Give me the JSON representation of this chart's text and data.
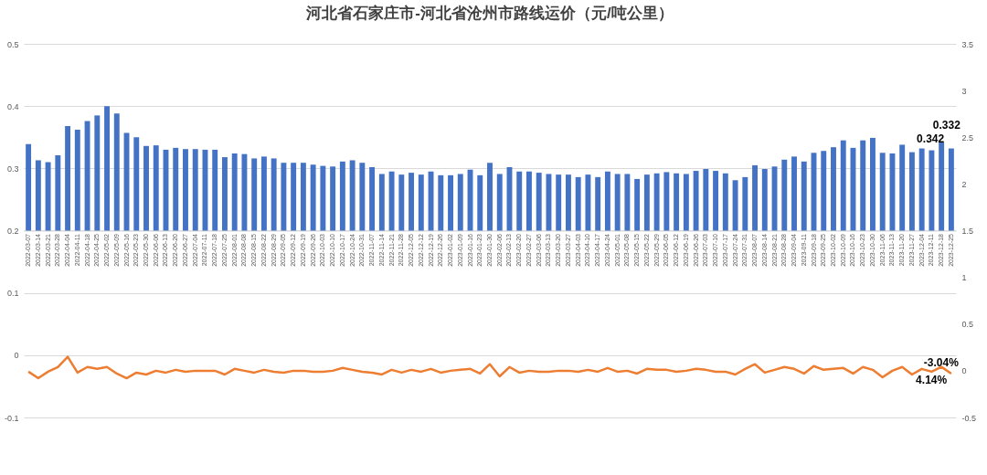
{
  "chart_data": {
    "type": "bar",
    "title": "河北省石家庄市-河北省沧州市路线运价（元/吨公里）",
    "categories": [
      "2022-03-07",
      "2022-03-14",
      "2022-03-21",
      "2022-03-28",
      "2022-04-04",
      "2022-04-11",
      "2022-04-18",
      "2022-04-25",
      "2022-05-02",
      "2022-05-09",
      "2022-05-16",
      "2022-05-23",
      "2022-05-30",
      "2022-06-06",
      "2022-06-13",
      "2022-06-20",
      "2022-06-27",
      "2022-07-04",
      "2022-07-11",
      "2022-07-18",
      "2022-07-25",
      "2022-08-01",
      "2022-08-08",
      "2022-08-15",
      "2022-08-22",
      "2022-08-29",
      "2022-09-05",
      "2022-09-12",
      "2022-09-19",
      "2022-09-26",
      "2022-10-03",
      "2022-10-10",
      "2022-10-17",
      "2022-10-24",
      "2022-10-31",
      "2022-11-07",
      "2022-11-14",
      "2022-11-21",
      "2022-11-28",
      "2022-12-05",
      "2022-12-12",
      "2022-12-19",
      "2022-12-26",
      "2023-01-02",
      "2023-01-09",
      "2023-01-16",
      "2023-01-23",
      "2023-01-30",
      "2023-02-06",
      "2023-02-13",
      "2023-02-20",
      "2023-02-27",
      "2023-03-06",
      "2023-03-13",
      "2023-03-20",
      "2023-03-27",
      "2023-04-03",
      "2023-04-10",
      "2023-04-17",
      "2023-04-24",
      "2023-05-01",
      "2023-05-08",
      "2023-05-15",
      "2023-05-22",
      "2023-05-29",
      "2023-06-05",
      "2023-06-12",
      "2023-06-19",
      "2023-06-26",
      "2023-07-03",
      "2023-07-10",
      "2023-07-17",
      "2023-07-24",
      "2023-07-31",
      "2023-08-07",
      "2023-08-14",
      "2023-08-21",
      "2023-08-28",
      "2023-09-04",
      "2023-09-11",
      "2023-09-18",
      "2023-09-25",
      "2023-10-02",
      "2023-10-09",
      "2023-10-16",
      "2023-10-23",
      "2023-10-30",
      "2023-11-06",
      "2023-11-13",
      "2023-11-20",
      "2023-11-27",
      "2023-12-04",
      "2023-12-11",
      "2023-12-18",
      "2023-12-25"
    ],
    "series": [
      {
        "color": "#4472c4",
        "base": [
          0.2,
          0.2,
          0.2,
          0.2,
          0.2,
          0.2,
          0.2,
          0.2,
          0.2,
          0.2,
          0.2,
          0.2,
          0.2,
          0.2,
          0.2,
          0.2,
          0.2,
          0.2,
          0.2,
          0.2,
          0.2,
          0.2,
          0.2,
          0.2,
          0.2,
          0.2,
          0.2,
          0.2,
          0.2,
          0.2,
          0.2,
          0.2,
          0.2,
          0.2,
          0.2,
          0.2,
          0.2,
          0.2,
          0.2,
          0.2,
          0.2,
          0.2,
          0.2,
          0.2,
          0.2,
          0.2,
          0.2,
          0.2,
          0.2,
          0.2,
          0.2,
          0.2,
          0.2,
          0.2,
          0.2,
          0.2,
          0.2,
          0.2,
          0.2,
          0.2,
          0.2,
          0.2,
          0.2,
          0.2,
          0.2,
          0.2,
          0.2,
          0.2,
          0.2,
          0.2,
          0.2,
          0.2,
          0.2,
          0.2,
          0.2,
          0.2,
          0.2,
          0.2,
          0.2,
          0.2,
          0.2,
          0.2,
          0.2,
          0.2,
          0.2,
          0.2,
          0.2,
          0.2,
          0.2,
          0.2,
          0.2,
          0.2,
          0.2,
          0.2,
          0.2
        ],
        "values": [
          0.139,
          0.113,
          0.11,
          0.121,
          0.168,
          0.162,
          0.176,
          0.185,
          0.2,
          0.188,
          0.157,
          0.15,
          0.136,
          0.137,
          0.13,
          0.133,
          0.131,
          0.131,
          0.13,
          0.13,
          0.118,
          0.124,
          0.123,
          0.116,
          0.119,
          0.116,
          0.109,
          0.109,
          0.109,
          0.106,
          0.104,
          0.103,
          0.111,
          0.113,
          0.109,
          0.102,
          0.091,
          0.095,
          0.09,
          0.093,
          0.09,
          0.095,
          0.089,
          0.089,
          0.091,
          0.098,
          0.089,
          0.109,
          0.091,
          0.102,
          0.095,
          0.095,
          0.093,
          0.091,
          0.09,
          0.09,
          0.086,
          0.09,
          0.086,
          0.095,
          0.091,
          0.091,
          0.083,
          0.09,
          0.092,
          0.094,
          0.092,
          0.091,
          0.096,
          0.099,
          0.096,
          0.092,
          0.081,
          0.086,
          0.105,
          0.099,
          0.103,
          0.114,
          0.119,
          0.111,
          0.125,
          0.128,
          0.134,
          0.145,
          0.133,
          0.145,
          0.149,
          0.125,
          0.124,
          0.138,
          0.126,
          0.132,
          0.129,
          0.142,
          0.132
        ],
        "value_labels": [
          null,
          null,
          null,
          null,
          null,
          null,
          null,
          null,
          null,
          null,
          null,
          null,
          null,
          null,
          null,
          null,
          null,
          null,
          null,
          null,
          null,
          null,
          null,
          null,
          null,
          null,
          null,
          null,
          null,
          null,
          null,
          null,
          null,
          null,
          null,
          null,
          null,
          null,
          null,
          null,
          null,
          null,
          null,
          null,
          null,
          null,
          null,
          null,
          null,
          null,
          null,
          null,
          null,
          null,
          null,
          null,
          null,
          null,
          null,
          null,
          null,
          null,
          null,
          null,
          null,
          null,
          null,
          null,
          null,
          null,
          null,
          null,
          null,
          null,
          null,
          null,
          null,
          null,
          null,
          null,
          null,
          null,
          null,
          null,
          null,
          null,
          null,
          null,
          null,
          null,
          null,
          null,
          null,
          "0.342",
          "0.332"
        ]
      },
      {
        "type": "line",
        "axis": "y2",
        "color": "#ed7d31",
        "values": [
          -0.01,
          -0.08,
          -0.01,
          0.04,
          0.15,
          -0.02,
          0.04,
          0.02,
          0.04,
          -0.03,
          -0.08,
          -0.02,
          -0.04,
          0,
          -0.02,
          0.01,
          -0.01,
          0,
          0,
          0,
          -0.04,
          0.02,
          0,
          -0.02,
          0.01,
          -0.01,
          -0.02,
          0,
          0,
          -0.01,
          -0.01,
          0,
          0.03,
          0.01,
          -0.01,
          -0.02,
          -0.04,
          0.01,
          -0.02,
          0.01,
          -0.01,
          0.02,
          -0.02,
          0,
          0.01,
          0.02,
          -0.03,
          0.07,
          -0.06,
          0.04,
          -0.02,
          0,
          -0.01,
          -0.01,
          0,
          0,
          -0.01,
          0.01,
          -0.01,
          0.03,
          -0.01,
          0,
          -0.03,
          0.02,
          0.01,
          0.01,
          -0.01,
          0,
          0.02,
          0.01,
          -0.01,
          -0.01,
          -0.04,
          0.02,
          0.07,
          -0.02,
          0.01,
          0.04,
          0.02,
          -0.03,
          0.05,
          0.01,
          0.02,
          0.03,
          -0.03,
          0.04,
          0.01,
          -0.07,
          0,
          0.04,
          -0.04,
          0.02,
          -0.01,
          0.0414,
          -0.0304
        ],
        "value_labels": [
          null,
          null,
          null,
          null,
          null,
          null,
          null,
          null,
          null,
          null,
          null,
          null,
          null,
          null,
          null,
          null,
          null,
          null,
          null,
          null,
          null,
          null,
          null,
          null,
          null,
          null,
          null,
          null,
          null,
          null,
          null,
          null,
          null,
          null,
          null,
          null,
          null,
          null,
          null,
          null,
          null,
          null,
          null,
          null,
          null,
          null,
          null,
          null,
          null,
          null,
          null,
          null,
          null,
          null,
          null,
          null,
          null,
          null,
          null,
          null,
          null,
          null,
          null,
          null,
          null,
          null,
          null,
          null,
          null,
          null,
          null,
          null,
          null,
          null,
          null,
          null,
          null,
          null,
          null,
          null,
          null,
          null,
          null,
          null,
          null,
          null,
          null,
          null,
          null,
          null,
          null,
          null,
          null,
          "4.14%",
          "-3.04%"
        ]
      }
    ],
    "ylim": [
      -0.1,
      0.5
    ],
    "yticks": [
      -0.1,
      0,
      0.1,
      0.2,
      0.3,
      0.4,
      0.5
    ],
    "y2lim": [
      -0.5,
      3.5
    ],
    "y2ticks": [
      -0.5,
      0,
      0.5,
      1,
      1.5,
      2,
      2.5,
      3,
      3.5
    ],
    "grid": "y"
  }
}
